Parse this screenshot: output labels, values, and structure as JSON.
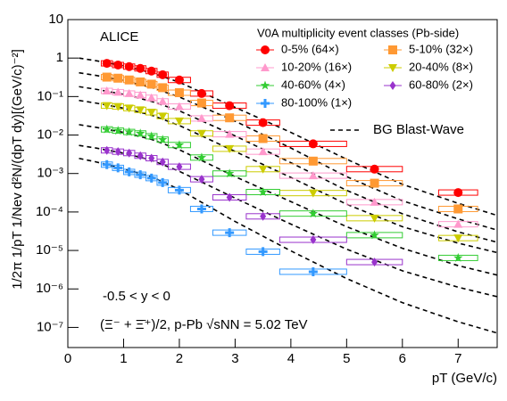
{
  "chart_data": {
    "type": "scatter",
    "xlabel": "pT (GeV/c)",
    "ylabel": "1/2π 1/pT 1/Nev d²N/(dpT dy)[(GeV/c)⁻²]",
    "log_y": true,
    "xlim": [
      0,
      7.7
    ],
    "ylim": [
      3e-08,
      10
    ],
    "xticks": [
      0,
      1,
      2,
      3,
      4,
      5,
      6,
      7
    ],
    "yticks": [
      {
        "value": 1e-07,
        "label": "10⁻⁷"
      },
      {
        "value": 1e-06,
        "label": "10⁻⁶"
      },
      {
        "value": 1e-05,
        "label": "10⁻⁵"
      },
      {
        "value": 0.0001,
        "label": "10⁻⁴"
      },
      {
        "value": 0.001,
        "label": "10⁻³"
      },
      {
        "value": 0.01,
        "label": "10⁻²"
      },
      {
        "value": 0.1,
        "label": "10⁻¹"
      },
      1,
      10
    ],
    "legend_title": "V0A multiplicity event classes (Pb-side)",
    "legend": "upper right",
    "annotations": [
      "ALICE",
      "-0.5 < y < 0",
      "(Ξ⁻ + Ξ̄⁺)/2, p-Pb √sNN = 5.02 TeV"
    ],
    "x": [
      0.7,
      0.9,
      1.1,
      1.3,
      1.5,
      1.7,
      2.0,
      2.4,
      2.9,
      3.5,
      4.4,
      5.5,
      7.0
    ],
    "xerr": [
      0.1,
      0.1,
      0.1,
      0.1,
      0.1,
      0.1,
      0.2,
      0.2,
      0.3,
      0.3,
      0.6,
      0.5,
      0.35
    ],
    "series": [
      {
        "name": "0-5% (64×)",
        "color": "#ff0000",
        "marker": "circle",
        "values": [
          0.73,
          0.66,
          0.6,
          0.54,
          0.46,
          0.37,
          0.27,
          0.12,
          0.058,
          0.021,
          0.0059,
          0.0013,
          0.00032
        ]
      },
      {
        "name": "5-10% (32×)",
        "color": "#ff9933",
        "marker": "square",
        "values": [
          0.32,
          0.3,
          0.27,
          0.24,
          0.21,
          0.17,
          0.126,
          0.068,
          0.028,
          0.0081,
          0.0021,
          0.00056,
          0.00012
        ]
      },
      {
        "name": "10-20% (16×)",
        "color": "#ff99cc",
        "marker": "triangle-up",
        "values": [
          0.14,
          0.13,
          0.12,
          0.11,
          0.093,
          0.075,
          0.055,
          0.027,
          0.0105,
          0.0037,
          0.00088,
          0.00018,
          4.8e-05
        ]
      },
      {
        "name": "20-40% (8×)",
        "color": "#cccc00",
        "marker": "triangle-down",
        "values": [
          0.058,
          0.055,
          0.05,
          0.045,
          0.039,
          0.031,
          0.023,
          0.011,
          0.0044,
          0.0013,
          0.00031,
          6.9e-05,
          2.1e-05
        ]
      },
      {
        "name": "40-60% (4×)",
        "color": "#33cc33",
        "marker": "star",
        "values": [
          0.014,
          0.013,
          0.012,
          0.011,
          0.0093,
          0.0076,
          0.0055,
          0.0026,
          0.001,
          0.00033,
          9.1e-05,
          2.5e-05,
          6.4e-06
        ]
      },
      {
        "name": "60-80% (2×)",
        "color": "#9933cc",
        "marker": "diamond",
        "values": [
          0.004,
          0.0037,
          0.0034,
          0.0029,
          0.0025,
          0.002,
          0.0015,
          0.00071,
          0.00024,
          7.7e-05,
          1.9e-05,
          5e-06,
          null
        ]
      },
      {
        "name": "80-100% (1×)",
        "color": "#3399ff",
        "marker": "cross",
        "values": [
          0.0017,
          0.0014,
          0.0011,
          0.00093,
          0.00076,
          0.00058,
          0.00037,
          0.00012,
          2.9e-05,
          9.3e-06,
          2.8e-06,
          null,
          null
        ]
      }
    ],
    "fits": {
      "name": "BG Blast-Wave",
      "color": "#000000",
      "x": [
        0.2,
        0.5,
        1,
        1.5,
        2,
        3,
        4,
        5,
        6,
        7,
        7.7
      ],
      "values": [
        [
          1.0,
          0.856,
          0.628,
          0.415,
          0.235,
          0.0524,
          0.0117,
          0.00235,
          0.000524,
          0.000168,
          8.13e-05
        ],
        [
          0.415,
          0.355,
          0.26,
          0.172,
          0.0975,
          0.0229,
          0.0046,
          0.00083,
          0.000196,
          6.6e-05,
          3.4e-05
        ],
        [
          0.181,
          0.155,
          0.114,
          0.0752,
          0.0426,
          0.0095,
          0.00191,
          0.000365,
          9e-05,
          3.04e-05,
          1.63e-05
        ],
        [
          0.0793,
          0.0678,
          0.0498,
          0.0329,
          0.0177,
          0.00374,
          0.00079,
          0.000159,
          4.15e-05,
          1.55e-05,
          8.8e-06
        ],
        [
          0.0186,
          0.0159,
          0.0117,
          0.0077,
          0.00415,
          0.00083,
          0.000186,
          4.15e-05,
          1.14e-05,
          4.04e-06,
          2.29e-06
        ],
        [
          0.00537,
          0.0046,
          0.00337,
          0.00223,
          0.00114,
          0.000229,
          4.84e-05,
          1.08e-05,
          2.96e-06,
          1.11e-06,
          6.3e-07
        ],
        [
          0.00247,
          0.00201,
          0.00133,
          0.00083,
          0.000384,
          5.66e-05,
          9.75e-06,
          1.86e-06,
          4.4e-07,
          1.4e-07,
          7.14e-08
        ]
      ]
    }
  }
}
